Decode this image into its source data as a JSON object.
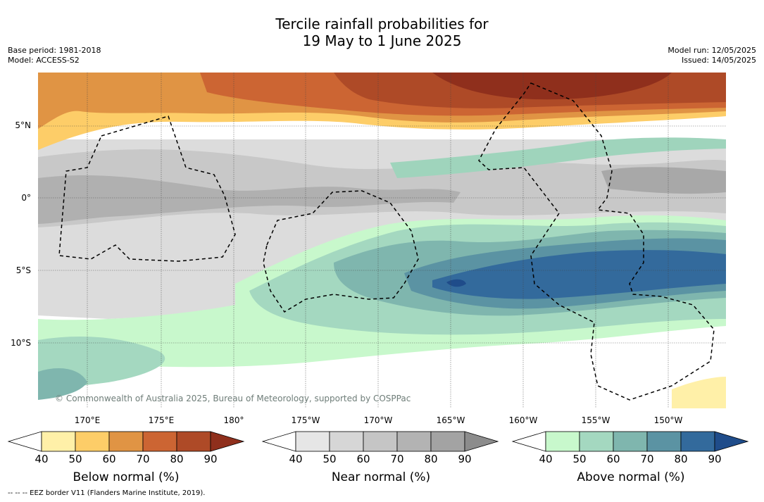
{
  "title_line1": "Tercile rainfall probabilities for",
  "title_line2": "19 May to 1 June 2025",
  "base_period": "Base period: 1981-2018",
  "model": "Model: ACCESS-S2",
  "model_run": "Model run: 12/05/2025",
  "issued": "Issued: 14/05/2025",
  "lat_labels": [
    "5°N",
    "0°",
    "5°S",
    "10°S"
  ],
  "lon_labels": [
    "170°E",
    "175°E",
    "180°",
    "175°W",
    "170°W",
    "165°W",
    "160°W",
    "155°W",
    "150°W"
  ],
  "credit": "© Commonwealth of Australia 2025, Bureau of Meteorology, supported by COSPPac",
  "footnote": "-- -- -- EEZ border V11 (Flanders Marine Institute, 2019).",
  "colorbars": [
    {
      "label": "Below normal (%)",
      "ticks": [
        "40",
        "50",
        "60",
        "70",
        "80",
        "90"
      ],
      "colors": [
        "#ffffff",
        "#fff0a8",
        "#fdcd68",
        "#e09444",
        "#cc6533",
        "#ae4a27",
        "#8f2f1c"
      ]
    },
    {
      "label": "Near normal (%)",
      "ticks": [
        "40",
        "50",
        "60",
        "70",
        "80",
        "90"
      ],
      "colors": [
        "#ffffff",
        "#e6e6e6",
        "#d6d6d6",
        "#c5c5c5",
        "#b3b3b3",
        "#a3a3a3",
        "#8c8c8c"
      ]
    },
    {
      "label": "Above normal (%)",
      "ticks": [
        "40",
        "50",
        "60",
        "70",
        "80",
        "90"
      ],
      "colors": [
        "#ffffff",
        "#c8f8cc",
        "#a4d8c0",
        "#7fb6ae",
        "#5b93a3",
        "#336a9c",
        "#1f4c8a"
      ]
    }
  ]
}
